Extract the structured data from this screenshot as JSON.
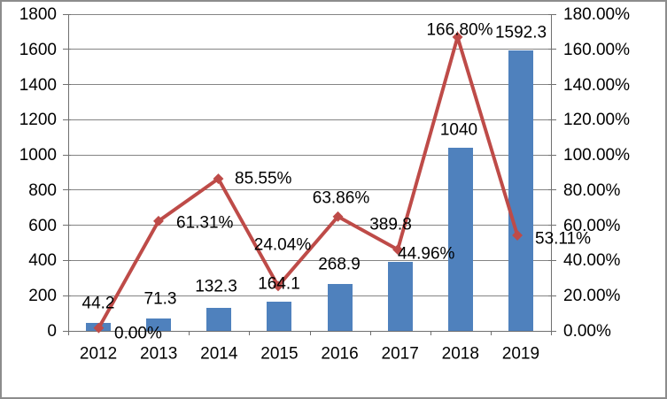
{
  "chart_data": {
    "type": "bar",
    "subtype": "combo-bar-line-dual-axis",
    "title": "",
    "categories": [
      "2012",
      "2013",
      "2014",
      "2015",
      "2016",
      "2017",
      "2018",
      "2019"
    ],
    "series": [
      {
        "name": "bar-series",
        "type": "bar",
        "axis": "left",
        "values": [
          44.2,
          71.3,
          132.3,
          164.1,
          268.9,
          389.8,
          1040,
          1592.3
        ],
        "labels": [
          "44.2",
          "71.3",
          "132.3",
          "164.1",
          "268.9",
          "389.8",
          "1040",
          "1592.3"
        ]
      },
      {
        "name": "line-series",
        "type": "line",
        "axis": "right",
        "marker": "diamond",
        "values": [
          0.0,
          61.31,
          85.55,
          24.04,
          63.86,
          44.96,
          166.8,
          53.11
        ],
        "labels": [
          "0.00%",
          "61.31%",
          "85.55%",
          "24.04%",
          "63.86%",
          "44.96%",
          "166.80%",
          "53.11%"
        ]
      }
    ],
    "left_axis": {
      "min": 0,
      "max": 1800,
      "step": 200,
      "ticks": [
        "0",
        "200",
        "400",
        "600",
        "800",
        "1000",
        "1200",
        "1400",
        "1600",
        "1800"
      ]
    },
    "right_axis": {
      "min": 0,
      "max": 180,
      "step": 20,
      "ticks": [
        "0.00%",
        "20.00%",
        "40.00%",
        "60.00%",
        "80.00%",
        "100.00%",
        "120.00%",
        "140.00%",
        "160.00%",
        "180.00%"
      ]
    },
    "grid": true,
    "legend": false,
    "colors": {
      "bar": "#4F81BD",
      "line": "#BE4B48",
      "gridline": "#848484",
      "axis": "#6F6F6F",
      "text": "#000000",
      "frame_border": "#8C8C8C",
      "background": "#FFFFFF"
    }
  }
}
